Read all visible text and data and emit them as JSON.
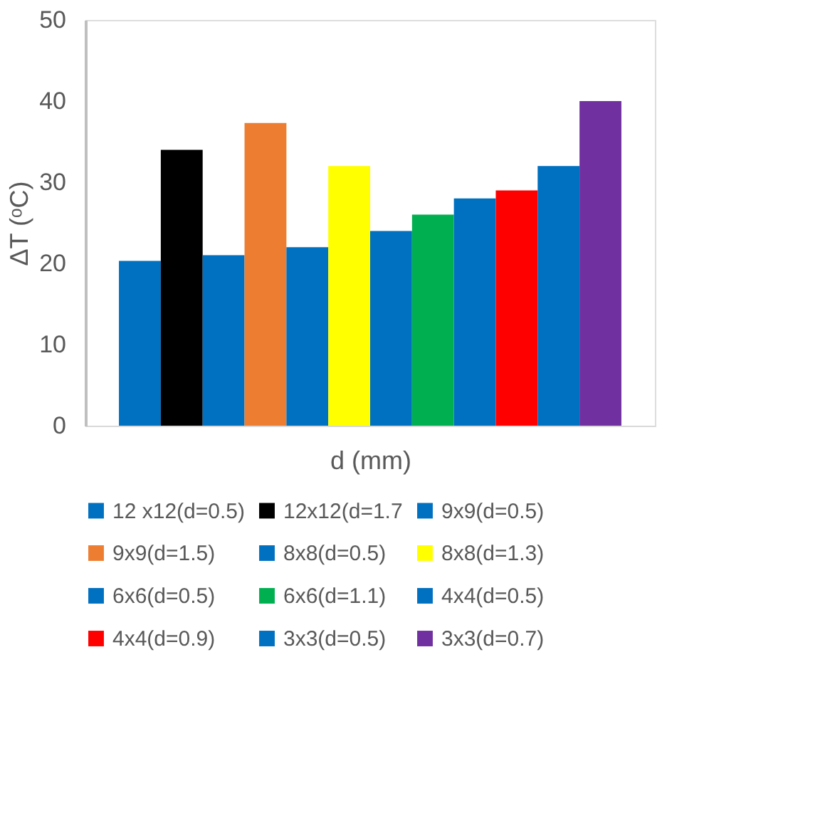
{
  "chart_data": {
    "type": "bar",
    "xlabel": "d (mm)",
    "ylabel": "ΔT (ᵒC)",
    "categories": [
      null
    ],
    "series": [
      {
        "name": "12 x12(d=0.5)",
        "color": "#0070c0",
        "values": [
          20.3
        ]
      },
      {
        "name": "12x12(d=1.7",
        "color": "#000000",
        "values": [
          34
        ]
      },
      {
        "name": "9x9(d=0.5)",
        "color": "#0070c0",
        "values": [
          21
        ]
      },
      {
        "name": "9x9(d=1.5)",
        "color": "#ed7d31",
        "values": [
          37.3
        ]
      },
      {
        "name": "8x8(d=0.5)",
        "color": "#0070c0",
        "values": [
          22
        ]
      },
      {
        "name": "8x8(d=1.3)",
        "color": "#ffff00",
        "values": [
          32
        ]
      },
      {
        "name": "6x6(d=0.5)",
        "color": "#0070c0",
        "values": [
          24
        ]
      },
      {
        "name": "6x6(d=1.1)",
        "color": "#00b050",
        "values": [
          26
        ]
      },
      {
        "name": "4x4(d=0.5)",
        "color": "#0070c0",
        "values": [
          28
        ]
      },
      {
        "name": "4x4(d=0.9)",
        "color": "#ff0000",
        "values": [
          29
        ]
      },
      {
        "name": "3x3(d=0.5)",
        "color": "#0070c0",
        "values": [
          32
        ]
      },
      {
        "name": "3x3(d=0.7)",
        "color": "#7030a0",
        "values": [
          40
        ]
      }
    ],
    "ylim": [
      0,
      50
    ],
    "yticks": [
      0,
      10,
      20,
      30,
      40,
      50
    ],
    "grid": false,
    "legend": "bottom"
  }
}
